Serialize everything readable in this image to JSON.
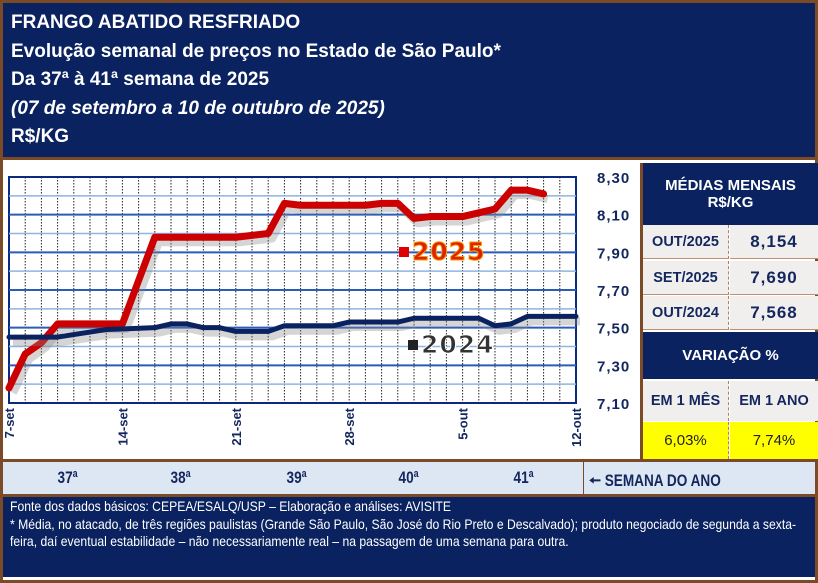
{
  "header": {
    "line1": "FRANGO ABATIDO RESFRIADO",
    "line2": "Evolução semanal de preços no Estado de São Paulo*",
    "line3": "Da 37ª à 41ª semana de 2025",
    "line4": "(07 de setembro a 10 de outubro de 2025)",
    "line5": "R$/KG"
  },
  "chart_data": {
    "type": "line",
    "x_ticks": [
      "7-set",
      "14-set",
      "21-set",
      "28-set",
      "5-out",
      "12-out"
    ],
    "x_range": [
      "2025-09-07",
      "2025-10-12"
    ],
    "y_ticks": [
      "7,10",
      "7,30",
      "7,50",
      "7,70",
      "7,90",
      "8,10",
      "8,30"
    ],
    "ylim": [
      7.1,
      8.3
    ],
    "grid": true,
    "legend": "inline labels",
    "series": [
      {
        "name": "2025",
        "color": "#cc0000",
        "points": [
          [
            "2025-09-07",
            7.18
          ],
          [
            "2025-09-08",
            7.36
          ],
          [
            "2025-09-09",
            7.42
          ],
          [
            "2025-09-10",
            7.52
          ],
          [
            "2025-09-14",
            7.52
          ],
          [
            "2025-09-15",
            7.75
          ],
          [
            "2025-09-16",
            7.98
          ],
          [
            "2025-09-21",
            7.98
          ],
          [
            "2025-09-22",
            7.99
          ],
          [
            "2025-09-23",
            8.0
          ],
          [
            "2025-09-24",
            8.16
          ],
          [
            "2025-09-25",
            8.15
          ],
          [
            "2025-09-29",
            8.15
          ],
          [
            "2025-09-30",
            8.16
          ],
          [
            "2025-10-01",
            8.16
          ],
          [
            "2025-10-02",
            8.08
          ],
          [
            "2025-10-03",
            8.09
          ],
          [
            "2025-10-05",
            8.09
          ],
          [
            "2025-10-06",
            8.11
          ],
          [
            "2025-10-07",
            8.13
          ],
          [
            "2025-10-08",
            8.23
          ],
          [
            "2025-10-09",
            8.23
          ],
          [
            "2025-10-10",
            8.21
          ]
        ]
      },
      {
        "name": "2024",
        "color": "#0a2260",
        "points": [
          [
            "2025-09-07",
            7.45
          ],
          [
            "2025-09-10",
            7.45
          ],
          [
            "2025-09-13",
            7.49
          ],
          [
            "2025-09-16",
            7.5
          ],
          [
            "2025-09-17",
            7.52
          ],
          [
            "2025-09-18",
            7.52
          ],
          [
            "2025-09-19",
            7.5
          ],
          [
            "2025-09-20",
            7.5
          ],
          [
            "2025-09-21",
            7.48
          ],
          [
            "2025-09-23",
            7.48
          ],
          [
            "2025-09-24",
            7.51
          ],
          [
            "2025-09-27",
            7.51
          ],
          [
            "2025-09-28",
            7.53
          ],
          [
            "2025-10-01",
            7.53
          ],
          [
            "2025-10-02",
            7.55
          ],
          [
            "2025-10-06",
            7.55
          ],
          [
            "2025-10-07",
            7.51
          ],
          [
            "2025-10-08",
            7.52
          ],
          [
            "2025-10-09",
            7.56
          ],
          [
            "2025-10-12",
            7.56
          ]
        ]
      }
    ]
  },
  "panel": {
    "title": "MÉDIAS MENSAIS",
    "unit": "R$/KG",
    "rows": [
      {
        "label": "OUT/2025",
        "value": "8,154"
      },
      {
        "label": "SET/2025",
        "value": "7,690"
      },
      {
        "label": "OUT/2024",
        "value": "7,568"
      }
    ],
    "var_title": "VARIAÇÃO %",
    "var_cols": [
      {
        "label": "EM 1 MÊS",
        "value": "6,03%"
      },
      {
        "label": "EM 1 ANO",
        "value": "7,74%"
      }
    ]
  },
  "weeks": {
    "items": [
      "37ª",
      "38ª",
      "39ª",
      "40ª",
      "41ª"
    ],
    "label": "SEMANA DO ANO",
    "arrow": "left-arrow-icon"
  },
  "footer": {
    "source": "Fonte dos dados básicos: CEPEA/ESALQ/USP – Elaboração e análises: AVISITE",
    "note": "* Média, no atacado, de três regiões paulistas (Grande São Paulo, São José do Rio Preto e Descalvado); produto negociado de segunda a sexta-feira, daí eventual estabilidade – não necessariamente real – na passagem de uma semana para outra."
  }
}
